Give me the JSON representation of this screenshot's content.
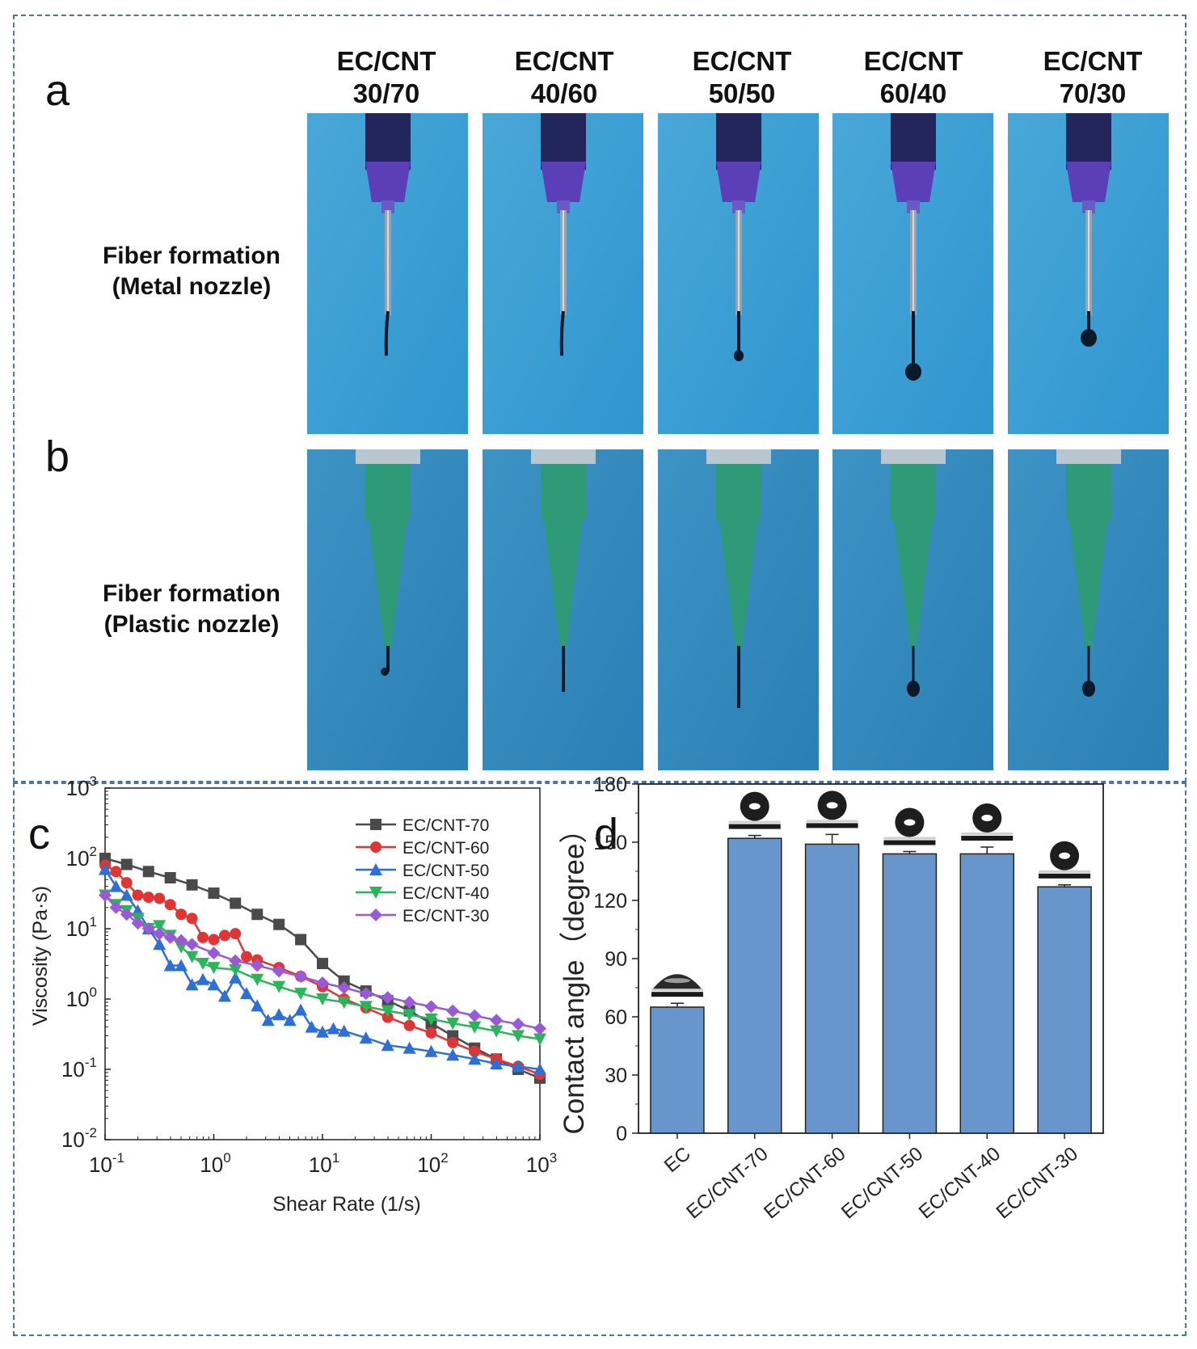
{
  "panels": {
    "a": "a",
    "b": "b",
    "c": "c",
    "d": "d"
  },
  "columns": [
    {
      "line1": "EC/CNT",
      "line2": "30/70"
    },
    {
      "line1": "EC/CNT",
      "line2": "40/60"
    },
    {
      "line1": "EC/CNT",
      "line2": "50/50"
    },
    {
      "line1": "EC/CNT",
      "line2": "60/40"
    },
    {
      "line1": "EC/CNT",
      "line2": "70/30"
    }
  ],
  "rows": {
    "metal": {
      "line1": "Fiber formation",
      "line2": "(Metal nozzle)"
    },
    "plastic": {
      "line1": "Fiber formation",
      "line2": "(Plastic nozzle)"
    }
  },
  "colors": {
    "frame": "#4f73a1",
    "photo_bg_metal": "#4aa7d8",
    "photo_bg_plastic": "#3d93c4",
    "nozzle_metal": "#5a3fb8",
    "nozzle_plastic": "#2e9a78",
    "bar": "#6795cc"
  },
  "photos": {
    "metal": [
      {
        "sample": "30/70",
        "extrudate": "fiber"
      },
      {
        "sample": "40/60",
        "extrudate": "fiber"
      },
      {
        "sample": "50/50",
        "extrudate": "droplet"
      },
      {
        "sample": "60/40",
        "extrudate": "droplet"
      },
      {
        "sample": "70/30",
        "extrudate": "droplet"
      }
    ],
    "plastic": [
      {
        "sample": "30/70",
        "extrudate": "fiber"
      },
      {
        "sample": "40/60",
        "extrudate": "fiber"
      },
      {
        "sample": "50/50",
        "extrudate": "fiber"
      },
      {
        "sample": "60/40",
        "extrudate": "droplet"
      },
      {
        "sample": "70/30",
        "extrudate": "droplet"
      }
    ]
  },
  "chart_data": [
    {
      "id": "c",
      "type": "line",
      "xscale": "log",
      "yscale": "log",
      "xlabel": "Shear Rate (1/s)",
      "ylabel": "Viscosity (Pa·s)",
      "xlim": [
        0.1,
        1000
      ],
      "ylim": [
        0.01,
        1000
      ],
      "xticks": [
        {
          "base": "10",
          "exp": "-1"
        },
        {
          "base": "10",
          "exp": "0"
        },
        {
          "base": "10",
          "exp": "1"
        },
        {
          "base": "10",
          "exp": "2"
        },
        {
          "base": "10",
          "exp": "3"
        }
      ],
      "yticks": [
        {
          "base": "10",
          "exp": "-2"
        },
        {
          "base": "10",
          "exp": "-1"
        },
        {
          "base": "10",
          "exp": "0"
        },
        {
          "base": "10",
          "exp": "1"
        },
        {
          "base": "10",
          "exp": "2"
        },
        {
          "base": "10",
          "exp": "3"
        }
      ],
      "legend_position": "top-right",
      "series": [
        {
          "name": "EC/CNT-70",
          "color": "#4a4a4a",
          "marker": "square",
          "x": [
            0.1,
            0.158,
            0.251,
            0.398,
            0.631,
            1,
            1.58,
            2.51,
            3.98,
            6.31,
            10,
            15.8,
            25.1,
            39.8,
            63.1,
            100,
            158,
            251,
            398,
            631,
            1000
          ],
          "y": [
            100,
            82,
            65,
            53,
            42,
            32,
            23,
            16,
            11.5,
            7,
            3.2,
            1.8,
            1.3,
            0.95,
            0.68,
            0.45,
            0.3,
            0.2,
            0.14,
            0.1,
            0.075
          ]
        },
        {
          "name": "EC/CNT-60",
          "color": "#e03535",
          "marker": "circle",
          "x": [
            0.1,
            0.126,
            0.158,
            0.2,
            0.251,
            0.316,
            0.398,
            0.501,
            0.631,
            0.794,
            1,
            1.26,
            1.58,
            2,
            2.51,
            3.98,
            6.31,
            10,
            15.8,
            25.1,
            39.8,
            63.1,
            100,
            158,
            251,
            398,
            631,
            1000
          ],
          "y": [
            80,
            65,
            45,
            30,
            28,
            27,
            22,
            16,
            14,
            7.5,
            7,
            8,
            8.5,
            4,
            3.6,
            2.8,
            2.1,
            1.5,
            1.0,
            0.75,
            0.55,
            0.42,
            0.33,
            0.24,
            0.18,
            0.14,
            0.11,
            0.085
          ]
        },
        {
          "name": "EC/CNT-50",
          "color": "#2d6fd6",
          "marker": "triangle-up",
          "x": [
            0.1,
            0.126,
            0.158,
            0.2,
            0.251,
            0.316,
            0.398,
            0.501,
            0.631,
            0.794,
            1,
            1.26,
            1.58,
            2,
            2.51,
            3.16,
            3.98,
            5.01,
            6.31,
            7.94,
            10,
            12.6,
            15.8,
            25.1,
            39.8,
            63.1,
            100,
            158,
            251,
            398,
            631,
            1000
          ],
          "y": [
            70,
            40,
            30,
            18,
            10,
            6,
            3,
            3,
            1.6,
            1.9,
            1.6,
            1.1,
            2.0,
            1.2,
            0.8,
            0.5,
            0.6,
            0.5,
            0.7,
            0.4,
            0.34,
            0.38,
            0.35,
            0.28,
            0.22,
            0.2,
            0.18,
            0.16,
            0.14,
            0.12,
            0.11,
            0.1
          ]
        },
        {
          "name": "EC/CNT-40",
          "color": "#2bb55a",
          "marker": "triangle-down",
          "x": [
            0.1,
            0.126,
            0.158,
            0.2,
            0.251,
            0.316,
            0.398,
            0.501,
            0.631,
            0.794,
            1,
            1.58,
            2.51,
            3.98,
            6.31,
            10,
            15.8,
            25.1,
            39.8,
            63.1,
            100,
            158,
            251,
            398,
            631,
            1000
          ],
          "y": [
            30,
            22,
            18,
            14,
            10,
            11,
            8,
            5.5,
            4,
            3.2,
            2.8,
            2.6,
            1.9,
            1.5,
            1.2,
            1.0,
            0.9,
            0.78,
            0.68,
            0.6,
            0.52,
            0.45,
            0.4,
            0.35,
            0.3,
            0.27
          ]
        },
        {
          "name": "EC/CNT-30",
          "color": "#9a5ad8",
          "marker": "diamond",
          "x": [
            0.1,
            0.126,
            0.158,
            0.2,
            0.251,
            0.316,
            0.398,
            0.501,
            0.631,
            1,
            1.58,
            2.51,
            3.98,
            6.31,
            10,
            15.8,
            25.1,
            39.8,
            63.1,
            100,
            158,
            251,
            398,
            631,
            1000
          ],
          "y": [
            30,
            20,
            16,
            12,
            10,
            8.5,
            7.5,
            6.8,
            6,
            4.5,
            3.5,
            3,
            2.5,
            2.1,
            1.7,
            1.45,
            1.2,
            1.05,
            0.9,
            0.78,
            0.68,
            0.58,
            0.5,
            0.44,
            0.38
          ]
        }
      ]
    },
    {
      "id": "d",
      "type": "bar",
      "ylabel": "Contact angle（degree）",
      "xlabel": "",
      "ylim": [
        0,
        180
      ],
      "yticks": [
        0,
        30,
        60,
        90,
        120,
        150,
        180
      ],
      "categories": [
        "EC",
        "EC/CNT-70",
        "EC/CNT-60",
        "EC/CNT-50",
        "EC/CNT-40",
        "EC/CNT-30"
      ],
      "values": [
        65,
        152,
        149,
        144,
        144,
        127
      ],
      "errors": [
        2,
        1.5,
        5,
        1.2,
        3.5,
        1
      ],
      "color": "#6795cc"
    }
  ]
}
